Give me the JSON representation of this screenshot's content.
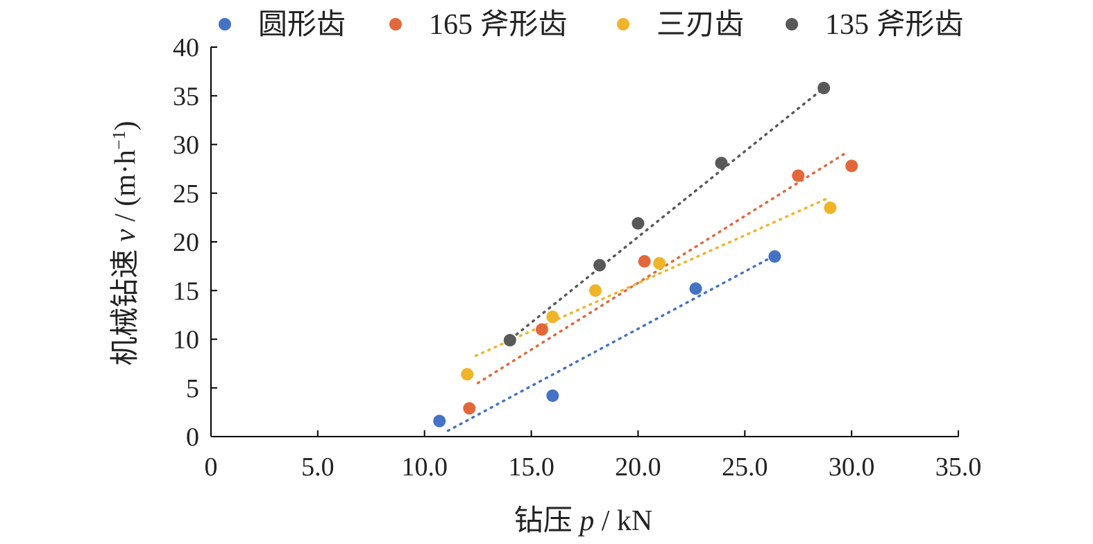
{
  "chart_data": {
    "type": "scatter",
    "xlabel_prefix": "钻压 ",
    "xlabel_var": "p",
    "xlabel_unit": " / kN",
    "ylabel_prefix": "机械钻速 ",
    "ylabel_var": "v",
    "ylabel_unit": " / (m·h",
    "ylabel_exp": "−1",
    "ylabel_close": ")",
    "xlim": [
      0,
      35
    ],
    "ylim": [
      0,
      40
    ],
    "x_ticks": [
      0,
      5,
      10,
      15,
      20,
      25,
      30,
      35
    ],
    "x_tick_labels": [
      "0",
      "5.0",
      "10.0",
      "15.0",
      "20.0",
      "25.0",
      "30.0",
      "35.0"
    ],
    "y_ticks": [
      0,
      5,
      10,
      15,
      20,
      25,
      30,
      35,
      40
    ],
    "y_tick_labels": [
      "0",
      "5",
      "10",
      "15",
      "20",
      "25",
      "30",
      "35",
      "40"
    ],
    "grid": false,
    "legend_position": "top",
    "series": [
      {
        "name": "圆形齿",
        "color": "#4472C4",
        "x": [
          10.7,
          16.0,
          22.7,
          26.4
        ],
        "y": [
          1.6,
          4.2,
          15.2,
          18.5
        ],
        "trendline": {
          "x": [
            11.1,
            26.4
          ],
          "y": [
            0.6,
            18.6
          ]
        }
      },
      {
        "name": "165 斧形齿",
        "color": "#E2683C",
        "x": [
          12.1,
          15.5,
          20.3,
          27.5,
          30.0
        ],
        "y": [
          2.9,
          11.0,
          18.0,
          26.8,
          27.8
        ],
        "trendline": {
          "x": [
            12.5,
            29.7
          ],
          "y": [
            5.5,
            29.1
          ]
        }
      },
      {
        "name": "三刃齿",
        "color": "#F0B429",
        "x": [
          12.0,
          16.0,
          18.0,
          21.0,
          29.0
        ],
        "y": [
          6.4,
          12.3,
          15.0,
          17.8,
          23.5
        ],
        "trendline": {
          "x": [
            12.4,
            28.9
          ],
          "y": [
            8.3,
            24.5
          ]
        }
      },
      {
        "name": "135 斧形齿",
        "color": "#595959",
        "x": [
          14.0,
          18.2,
          20.0,
          23.9,
          28.7
        ],
        "y": [
          9.9,
          17.6,
          21.9,
          28.1,
          35.8
        ],
        "trendline": {
          "x": [
            13.8,
            28.7
          ],
          "y": [
            9.6,
            35.8
          ]
        }
      }
    ]
  }
}
